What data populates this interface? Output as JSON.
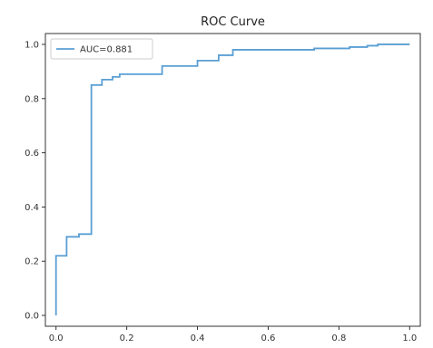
{
  "chart_data": {
    "type": "line",
    "title": "ROC Curve",
    "xlabel": "",
    "ylabel": "",
    "xlim": [
      -0.03,
      1.03
    ],
    "ylim": [
      -0.04,
      1.04
    ],
    "xticks": [
      "0.0",
      "0.2",
      "0.4",
      "0.6",
      "0.8",
      "1.0"
    ],
    "yticks": [
      "0.0",
      "0.2",
      "0.4",
      "0.6",
      "0.8",
      "1.0"
    ],
    "grid": false,
    "legend_position": "top-left",
    "series": [
      {
        "name": "AUC=0.881",
        "color": "#5a9fd4",
        "step": true,
        "x": [
          0.0,
          0.0,
          0.0,
          0.03,
          0.03,
          0.06,
          0.06,
          0.065,
          0.065,
          0.1,
          0.1,
          0.13,
          0.13,
          0.16,
          0.16,
          0.18,
          0.18,
          0.3,
          0.3,
          0.4,
          0.4,
          0.46,
          0.46,
          0.5,
          0.5,
          0.73,
          0.73,
          0.83,
          0.83,
          0.88,
          0.88,
          0.91,
          0.91,
          0.97,
          0.97,
          1.0
        ],
        "y": [
          0.0,
          0.22,
          0.22,
          0.22,
          0.29,
          0.29,
          0.29,
          0.29,
          0.3,
          0.3,
          0.85,
          0.85,
          0.87,
          0.87,
          0.88,
          0.88,
          0.89,
          0.89,
          0.92,
          0.92,
          0.94,
          0.94,
          0.96,
          0.96,
          0.98,
          0.98,
          0.985,
          0.985,
          0.99,
          0.99,
          0.995,
          0.995,
          1.0,
          1.0,
          1.0,
          1.0
        ]
      }
    ]
  }
}
